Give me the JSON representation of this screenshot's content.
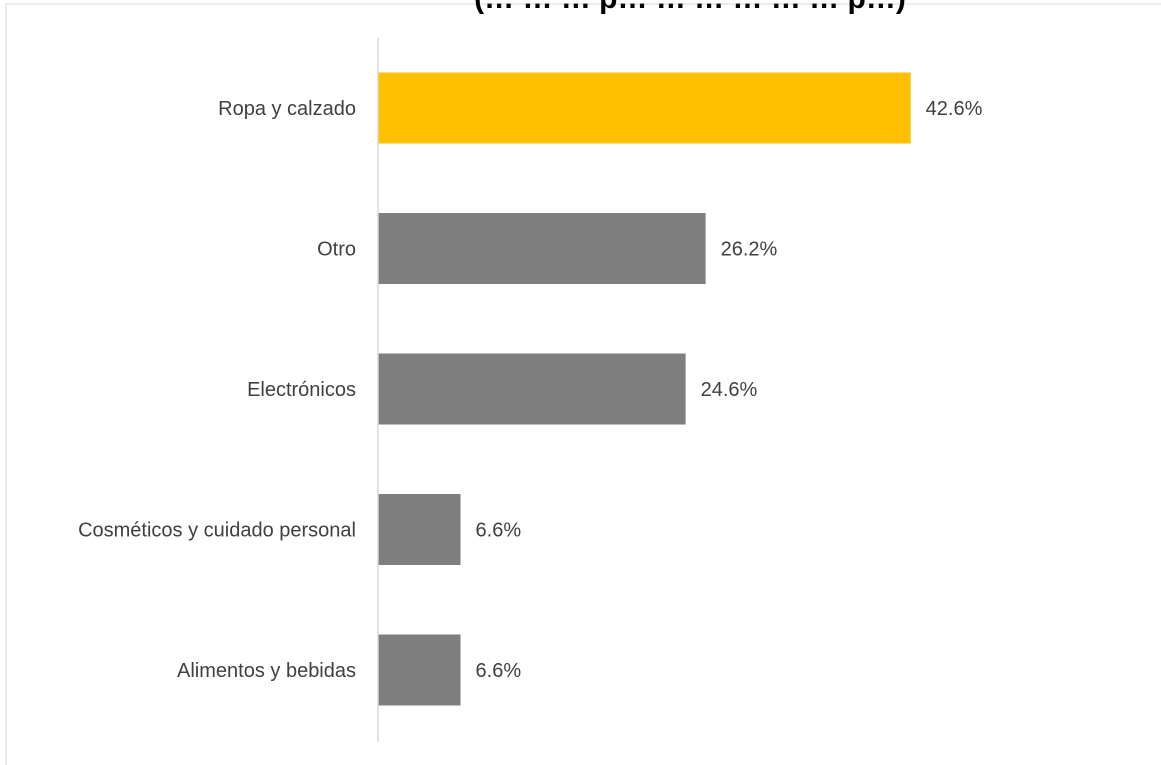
{
  "chart_data": {
    "type": "bar",
    "orientation": "horizontal",
    "title": "(… … … p… … … … … … p…)",
    "categories": [
      "Ropa y calzado",
      "Otro",
      "Electrónicos",
      "Cosméticos y cuidado personal",
      "Alimentos y bebidas"
    ],
    "values": [
      42.6,
      26.2,
      24.6,
      6.6,
      6.6
    ],
    "value_labels": [
      "42.6%",
      "26.2%",
      "24.6%",
      "6.6%",
      "6.6%"
    ],
    "highlight_index": 0,
    "xlim": [
      0,
      50
    ],
    "grid": false,
    "legend": "none",
    "colors": {
      "highlight": "#FFC000",
      "default": "#7F7F7F",
      "axis": "#D9D9D9",
      "text": "#404040",
      "frame": "#D9D9D9"
    }
  }
}
